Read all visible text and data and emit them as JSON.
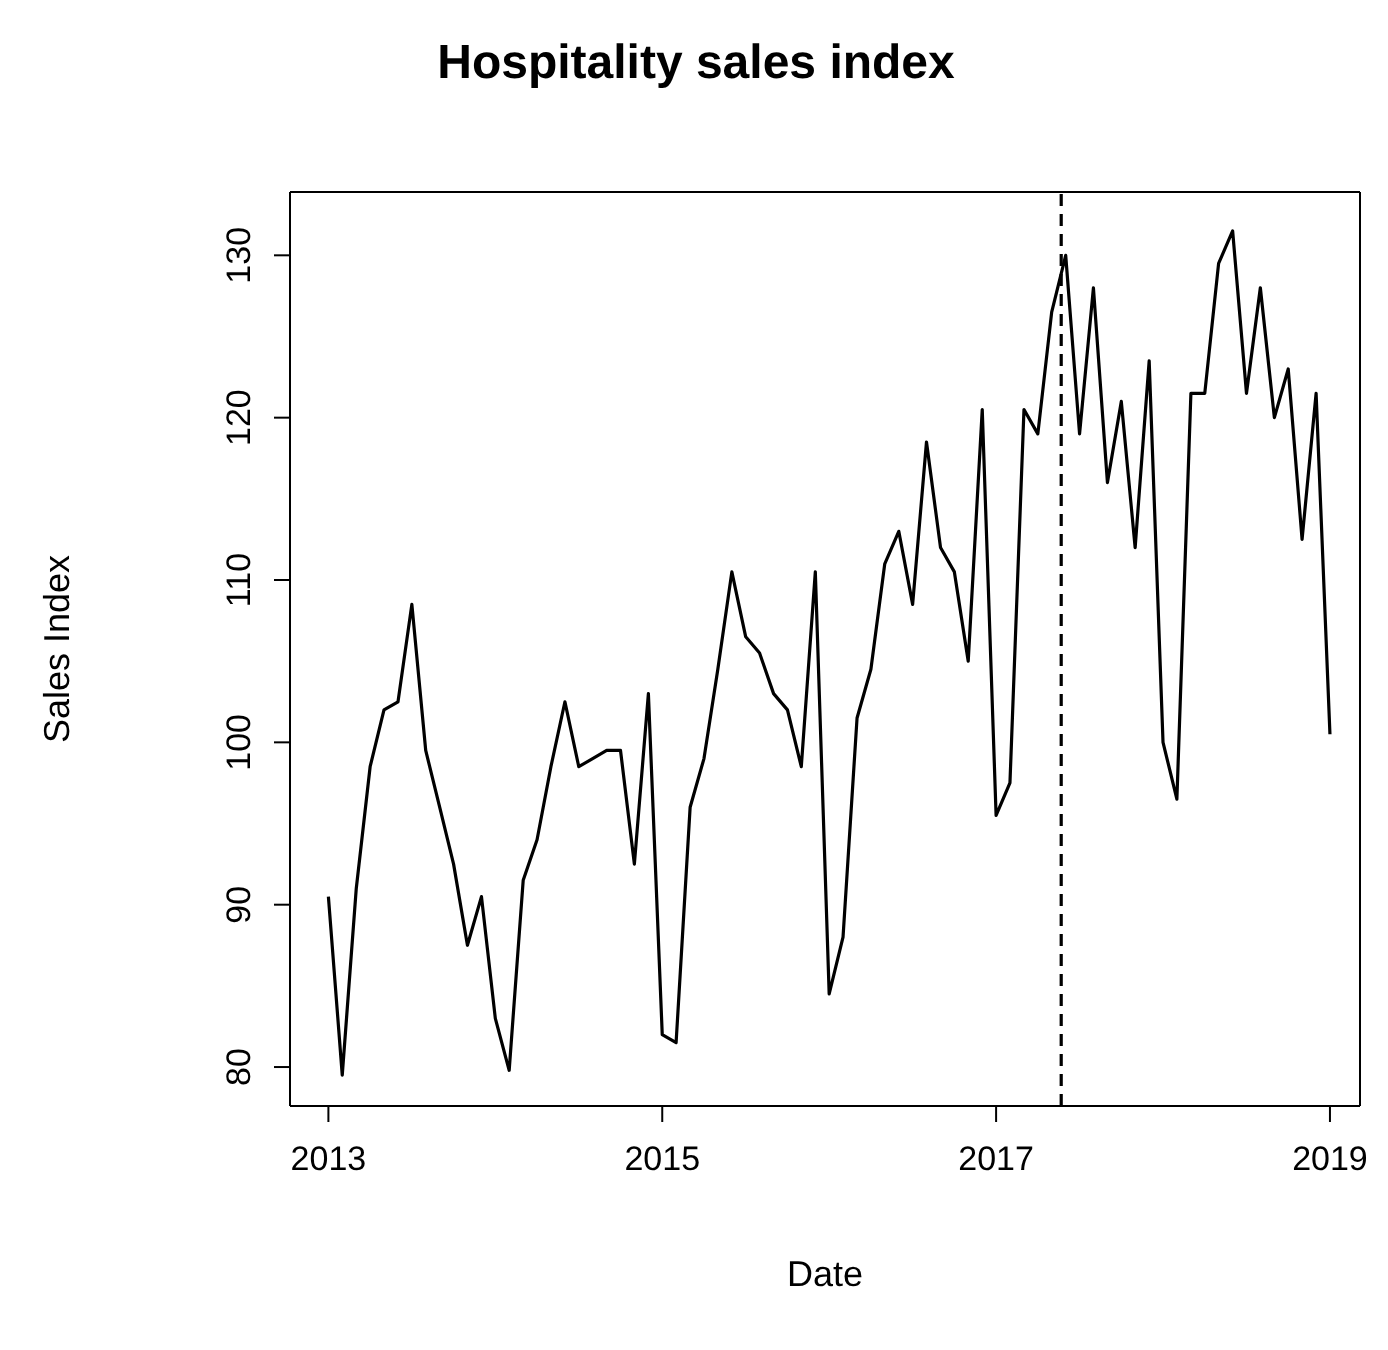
{
  "chart_data": {
    "type": "line",
    "title": "Hospitality sales index",
    "xlabel": "Date",
    "ylabel": "Sales Index",
    "x": [
      2013,
      2013.083,
      2013.167,
      2013.25,
      2013.333,
      2013.417,
      2013.5,
      2013.583,
      2013.667,
      2013.75,
      2013.833,
      2013.917,
      2014,
      2014.083,
      2014.167,
      2014.25,
      2014.333,
      2014.417,
      2014.5,
      2014.583,
      2014.667,
      2014.75,
      2014.833,
      2014.917,
      2015,
      2015.083,
      2015.167,
      2015.25,
      2015.333,
      2015.417,
      2015.5,
      2015.583,
      2015.667,
      2015.75,
      2015.833,
      2015.917,
      2016,
      2016.083,
      2016.167,
      2016.25,
      2016.333,
      2016.417,
      2016.5,
      2016.583,
      2016.667,
      2016.75,
      2016.833,
      2016.917,
      2017,
      2017.083,
      2017.167,
      2017.25,
      2017.333,
      2017.417,
      2017.5,
      2017.583,
      2017.667,
      2017.75,
      2017.833,
      2017.917,
      2018,
      2018.083,
      2018.167,
      2018.25,
      2018.333,
      2018.417,
      2018.5,
      2018.583,
      2018.667,
      2018.75,
      2018.833,
      2018.917,
      2019
    ],
    "series": [
      {
        "color": "#000000",
        "values": [
          90.5,
          79.5,
          91,
          98.5,
          102,
          102.5,
          108.5,
          99.5,
          96,
          92.5,
          87.5,
          90.5,
          83,
          79.8,
          91.5,
          94,
          98.5,
          102.5,
          98.5,
          99,
          99.5,
          99.5,
          92.5,
          103,
          82,
          81.5,
          96,
          99,
          104.5,
          110.5,
          106.5,
          105.5,
          103,
          102,
          98.5,
          110.5,
          84.5,
          88,
          101.5,
          104.5,
          111,
          113,
          108.5,
          118.5,
          112,
          110.5,
          105,
          120.5,
          95.5,
          97.5,
          120.5,
          119,
          126.5,
          130,
          119,
          128,
          116,
          121,
          112,
          123.5,
          100,
          96.5,
          121.5,
          121.5,
          129.5,
          131.5,
          121.5,
          128,
          120,
          123,
          112.5,
          121.5,
          100.5
        ]
      }
    ],
    "xlim": [
      2012.77,
      2019.18
    ],
    "xticks": [
      2013,
      2015,
      2017,
      2019
    ],
    "ylim": [
      77.6,
      133.9
    ],
    "yticks": [
      80,
      90,
      100,
      110,
      120,
      130
    ],
    "ref_lines": [
      {
        "axis": "x",
        "value": 2017.39,
        "color": "#000000",
        "line_style": "dashed"
      }
    ],
    "grid": false,
    "legend": false,
    "marker": "none",
    "line_style": "solid"
  }
}
